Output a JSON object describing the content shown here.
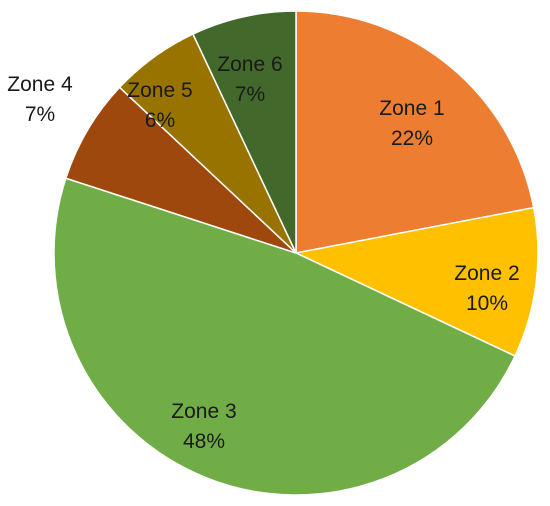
{
  "chart_data": {
    "type": "pie",
    "title": "",
    "legend": "none",
    "start_angle_deg": 0,
    "direction": "clockwise",
    "slices": [
      {
        "label": "Zone 1",
        "value": 22,
        "percent_label": "22%",
        "color": "#ED7D31"
      },
      {
        "label": "Zone 2",
        "value": 10,
        "percent_label": "10%",
        "color": "#FFC000"
      },
      {
        "label": "Zone 3",
        "value": 48,
        "percent_label": "48%",
        "color": "#70AD47"
      },
      {
        "label": "Zone 4",
        "value": 7,
        "percent_label": "7%",
        "color": "#9E480E"
      },
      {
        "label": "Zone 5",
        "value": 6,
        "percent_label": "6%",
        "color": "#997300"
      },
      {
        "label": "Zone 6",
        "value": 7,
        "percent_label": "7%",
        "color": "#43682B"
      }
    ]
  }
}
